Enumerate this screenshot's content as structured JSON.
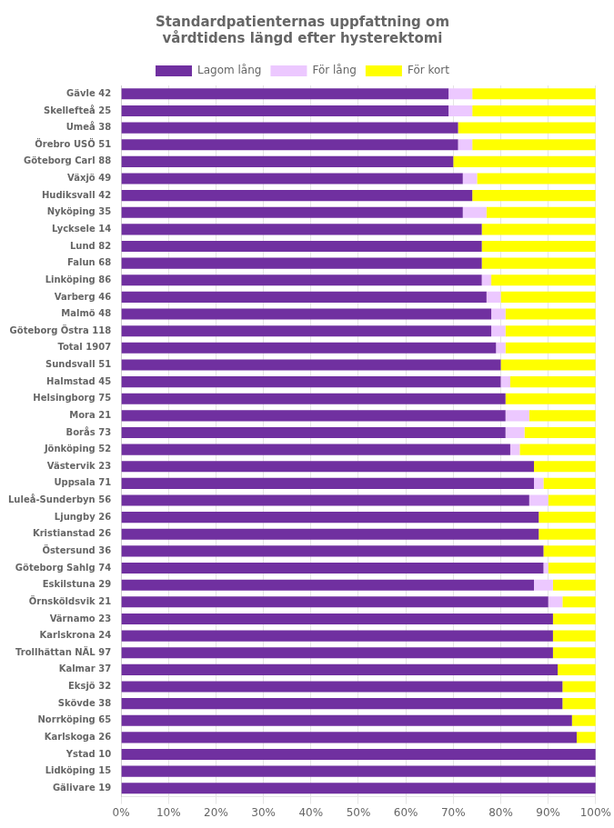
{
  "chart_data": {
    "type": "bar",
    "title": "Standardpatienternas uppfattning om\nvårdtidens längd efter hysterektomi",
    "orientation": "horizontal",
    "stacked": true,
    "grid": true,
    "legend": "top",
    "categories": [
      "Gävle 42",
      "Skellefteå 25",
      "Umeå 38",
      "Örebro USÖ 51",
      "Göteborg Carl 88",
      "Växjö 49",
      "Hudiksvall 42",
      "Nyköping 35",
      "Lycksele 14",
      "Lund 82",
      "Falun 68",
      "Linköping 86",
      "Varberg 46",
      "Malmö 48",
      "Göteborg Östra 118",
      "Total 1907",
      "Sundsvall 51",
      "Halmstad 45",
      "Helsingborg 75",
      "Mora 21",
      "Borås 73",
      "Jönköping 52",
      "Västervik 23",
      "Uppsala 71",
      "Luleå-Sunderbyn 56",
      "Ljungby 26",
      "Kristianstad 26",
      "Östersund 36",
      "Göteborg Sahlg 74",
      "Eskilstuna 29",
      "Örnsköldsvik 21",
      "Värnamo 23",
      "Karlskrona 24",
      "Trollhättan NÄL 97",
      "Kalmar 37",
      "Eksjö 32",
      "Skövde 38",
      "Norrköping 65",
      "Karlskoga 26",
      "Ystad 10",
      "Lidköping 15",
      "Gälivare 19"
    ],
    "series": [
      {
        "name": "Lagom lång",
        "color": "#7030A0",
        "values": [
          69,
          69,
          71,
          71,
          70,
          72,
          74,
          72,
          76,
          76,
          76,
          76,
          77,
          78,
          78,
          79,
          80,
          80,
          81,
          81,
          81,
          82,
          87,
          87,
          86,
          88,
          88,
          89,
          89,
          87,
          90,
          91,
          91,
          91,
          92,
          93,
          93,
          95,
          96,
          100,
          100,
          100
        ]
      },
      {
        "name": "För lång",
        "color": "#ECC8FF",
        "values": [
          5,
          5,
          0,
          3,
          0,
          3,
          0,
          5,
          0,
          0,
          0,
          2,
          3,
          3,
          3,
          2,
          0,
          2,
          0,
          5,
          4,
          2,
          0,
          2,
          4,
          0,
          0,
          0,
          1,
          4,
          3,
          0,
          0,
          0,
          0,
          0,
          0,
          0,
          0,
          0,
          0,
          0
        ]
      },
      {
        "name": "För kort",
        "color": "#FFFF00",
        "values": [
          26,
          26,
          29,
          26,
          30,
          25,
          26,
          23,
          24,
          24,
          24,
          22,
          20,
          19,
          19,
          19,
          20,
          18,
          19,
          14,
          15,
          16,
          13,
          11,
          10,
          12,
          12,
          11,
          10,
          9,
          7,
          9,
          9,
          9,
          8,
          7,
          7,
          5,
          4,
          0,
          0,
          0
        ]
      }
    ],
    "xlim": [
      0,
      100
    ],
    "xticks": [
      {
        "value": 0,
        "label": "0%"
      },
      {
        "value": 10,
        "label": "10%"
      },
      {
        "value": 20,
        "label": "20%"
      },
      {
        "value": 30,
        "label": "30%"
      },
      {
        "value": 40,
        "label": "40%"
      },
      {
        "value": 50,
        "label": "50%"
      },
      {
        "value": 60,
        "label": "60%"
      },
      {
        "value": 70,
        "label": "70%"
      },
      {
        "value": 80,
        "label": "80%"
      },
      {
        "value": 90,
        "label": "90%"
      },
      {
        "value": 100,
        "label": "100%"
      }
    ]
  }
}
